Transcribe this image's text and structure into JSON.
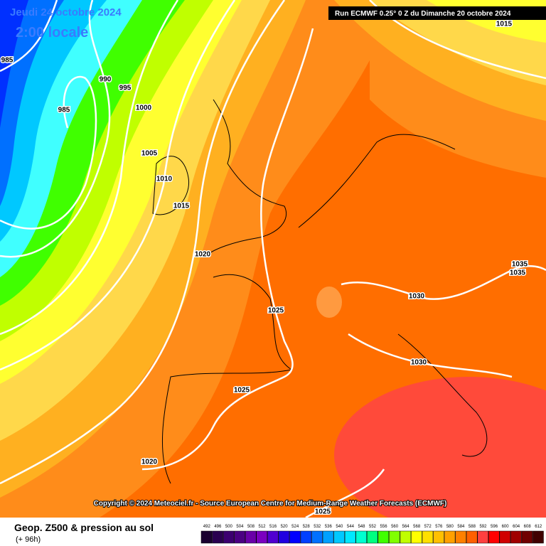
{
  "header": {
    "date": "Jeudi 24 octobre 2024",
    "time": "2:00 locale",
    "run": "Run ECMWF 0.25° 0 Z du Dimanche 20 octobre 2024"
  },
  "map": {
    "isobar_labels": [
      985,
      990,
      995,
      985,
      1000,
      1005,
      1010,
      1015,
      1020,
      1025,
      1030,
      1030,
      1035,
      1035,
      1025,
      1020,
      1025,
      1015
    ]
  },
  "copyright": "Copyright © 2024 Meteociel.fr - Source European Centre for Medium-Range Weather Forecasts (ECMWF)",
  "footer": {
    "title": "Geop. Z500 & pression au sol",
    "lead": "(+ 96h)"
  },
  "legend": {
    "labels": [
      492,
      496,
      500,
      504,
      508,
      512,
      516,
      520,
      524,
      528,
      532,
      536,
      540,
      544,
      548,
      552,
      556,
      560,
      564,
      568,
      572,
      576,
      580,
      584,
      588,
      592,
      596,
      600,
      604,
      608,
      612
    ],
    "colors": [
      "#1a0030",
      "#2a0050",
      "#3c0070",
      "#4b0082",
      "#6a00a8",
      "#7b00c0",
      "#5000d0",
      "#2000e0",
      "#0000ff",
      "#0040ff",
      "#0070ff",
      "#00a0ff",
      "#00c8ff",
      "#00e8ff",
      "#00ffd0",
      "#00ff80",
      "#40ff00",
      "#80ff00",
      "#c0ff00",
      "#ffff00",
      "#ffe000",
      "#ffc000",
      "#ffa000",
      "#ff8000",
      "#ff6000",
      "#ff4040",
      "#ff0000",
      "#d00000",
      "#a00000",
      "#700000",
      "#400000"
    ]
  }
}
